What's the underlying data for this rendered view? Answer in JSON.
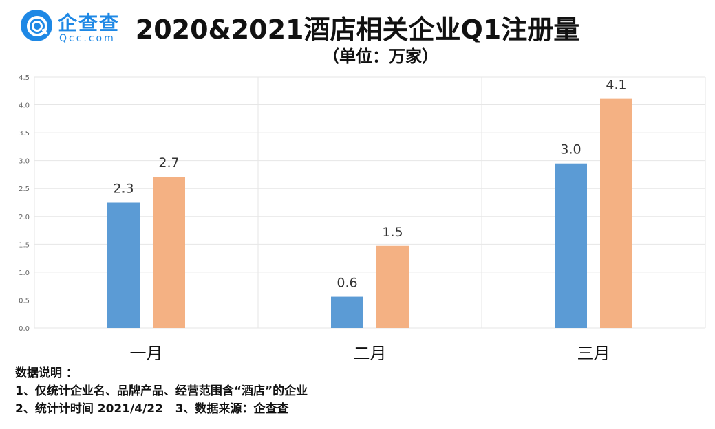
{
  "logo": {
    "name_cn": "企查查",
    "name_en": "Qcc.com"
  },
  "title": "2020&2021酒店相关企业Q1注册量",
  "unit": "（单位：万家）",
  "colors": {
    "series2020": "#5b9bd5",
    "series2021": "#f4b183",
    "grid": "#e6e6e6",
    "logo": "#1e88e5"
  },
  "chart_data": {
    "type": "bar",
    "categories": [
      "一月",
      "二月",
      "三月"
    ],
    "series": [
      {
        "values": [
          2.3,
          0.6,
          3.0
        ]
      },
      {
        "values": [
          2.7,
          1.5,
          4.1
        ]
      }
    ],
    "series_raw": [
      [
        2.25,
        0.56,
        2.95
      ],
      [
        2.71,
        1.47,
        4.11
      ]
    ],
    "ylim": [
      0,
      4.5
    ],
    "yticks": [
      "0.0",
      "0.5",
      "1.0",
      "1.5",
      "2.0",
      "2.5",
      "3.0",
      "3.5",
      "4.0",
      "4.5"
    ],
    "grid": true
  },
  "notes": {
    "heading": "数据说明 ：",
    "line1": "1、仅统计企业名、品牌产品、经营范围含“酒店”的企业",
    "line2": "2、统计计时间 2021/4/22   3、数据来源：企查查"
  }
}
